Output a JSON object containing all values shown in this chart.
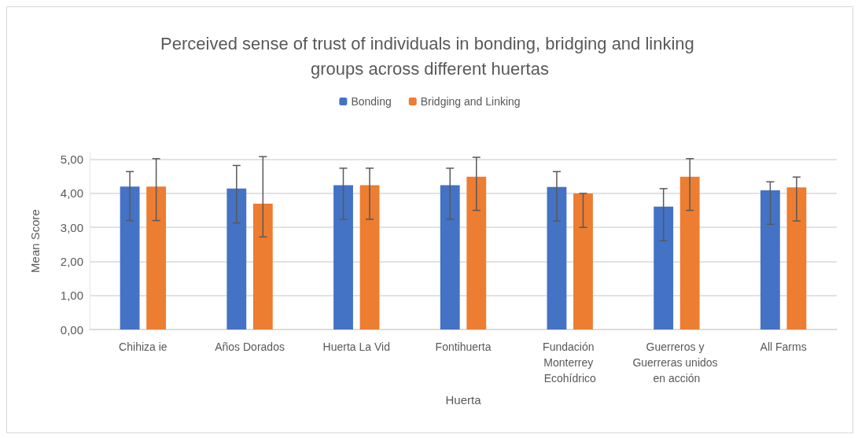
{
  "chart_data": {
    "type": "bar",
    "title": "Perceived sense of trust of individuals in bonding, bridging and linking groups across different huertas",
    "xlabel": "Huerta",
    "ylabel": "Mean Score",
    "categories": [
      "Chihiza ie",
      "Años Dorados",
      "Huerta La Vid",
      "Fontihuerta",
      "Fundación Monterrey Ecohídrico",
      "Guerreros y Guerreras unidos en acción",
      "All Farms"
    ],
    "series": [
      {
        "name": "Bonding",
        "color": "#4472c4",
        "values": [
          4.2,
          4.14,
          4.24,
          4.24,
          4.19,
          3.61,
          4.09
        ],
        "errors": [
          [
            3.2,
            4.64
          ],
          [
            3.13,
            4.82
          ],
          [
            3.24,
            4.74
          ],
          [
            3.24,
            4.74
          ],
          [
            3.19,
            4.64
          ],
          [
            2.61,
            4.14
          ],
          [
            3.09,
            4.34
          ]
        ]
      },
      {
        "name": "Bridging and Linking",
        "color": "#ed7d31",
        "values": [
          4.2,
          3.7,
          4.24,
          4.49,
          4.0,
          4.49,
          4.18
        ],
        "errors": [
          [
            3.2,
            5.02
          ],
          [
            2.72,
            5.08
          ],
          [
            3.24,
            4.74
          ],
          [
            3.5,
            5.06
          ],
          [
            3.0,
            4.0
          ],
          [
            3.5,
            5.02
          ],
          [
            3.19,
            4.48
          ]
        ]
      }
    ],
    "ylim": [
      0,
      5.2
    ],
    "yticks": [
      {
        "value": 0,
        "label": "0,00"
      },
      {
        "value": 1,
        "label": "1,00"
      },
      {
        "value": 2,
        "label": "2,00"
      },
      {
        "value": 3,
        "label": "3,00"
      },
      {
        "value": 4,
        "label": "4,00"
      },
      {
        "value": 5,
        "label": "5,00"
      }
    ],
    "grid": "y",
    "legend": "top"
  }
}
